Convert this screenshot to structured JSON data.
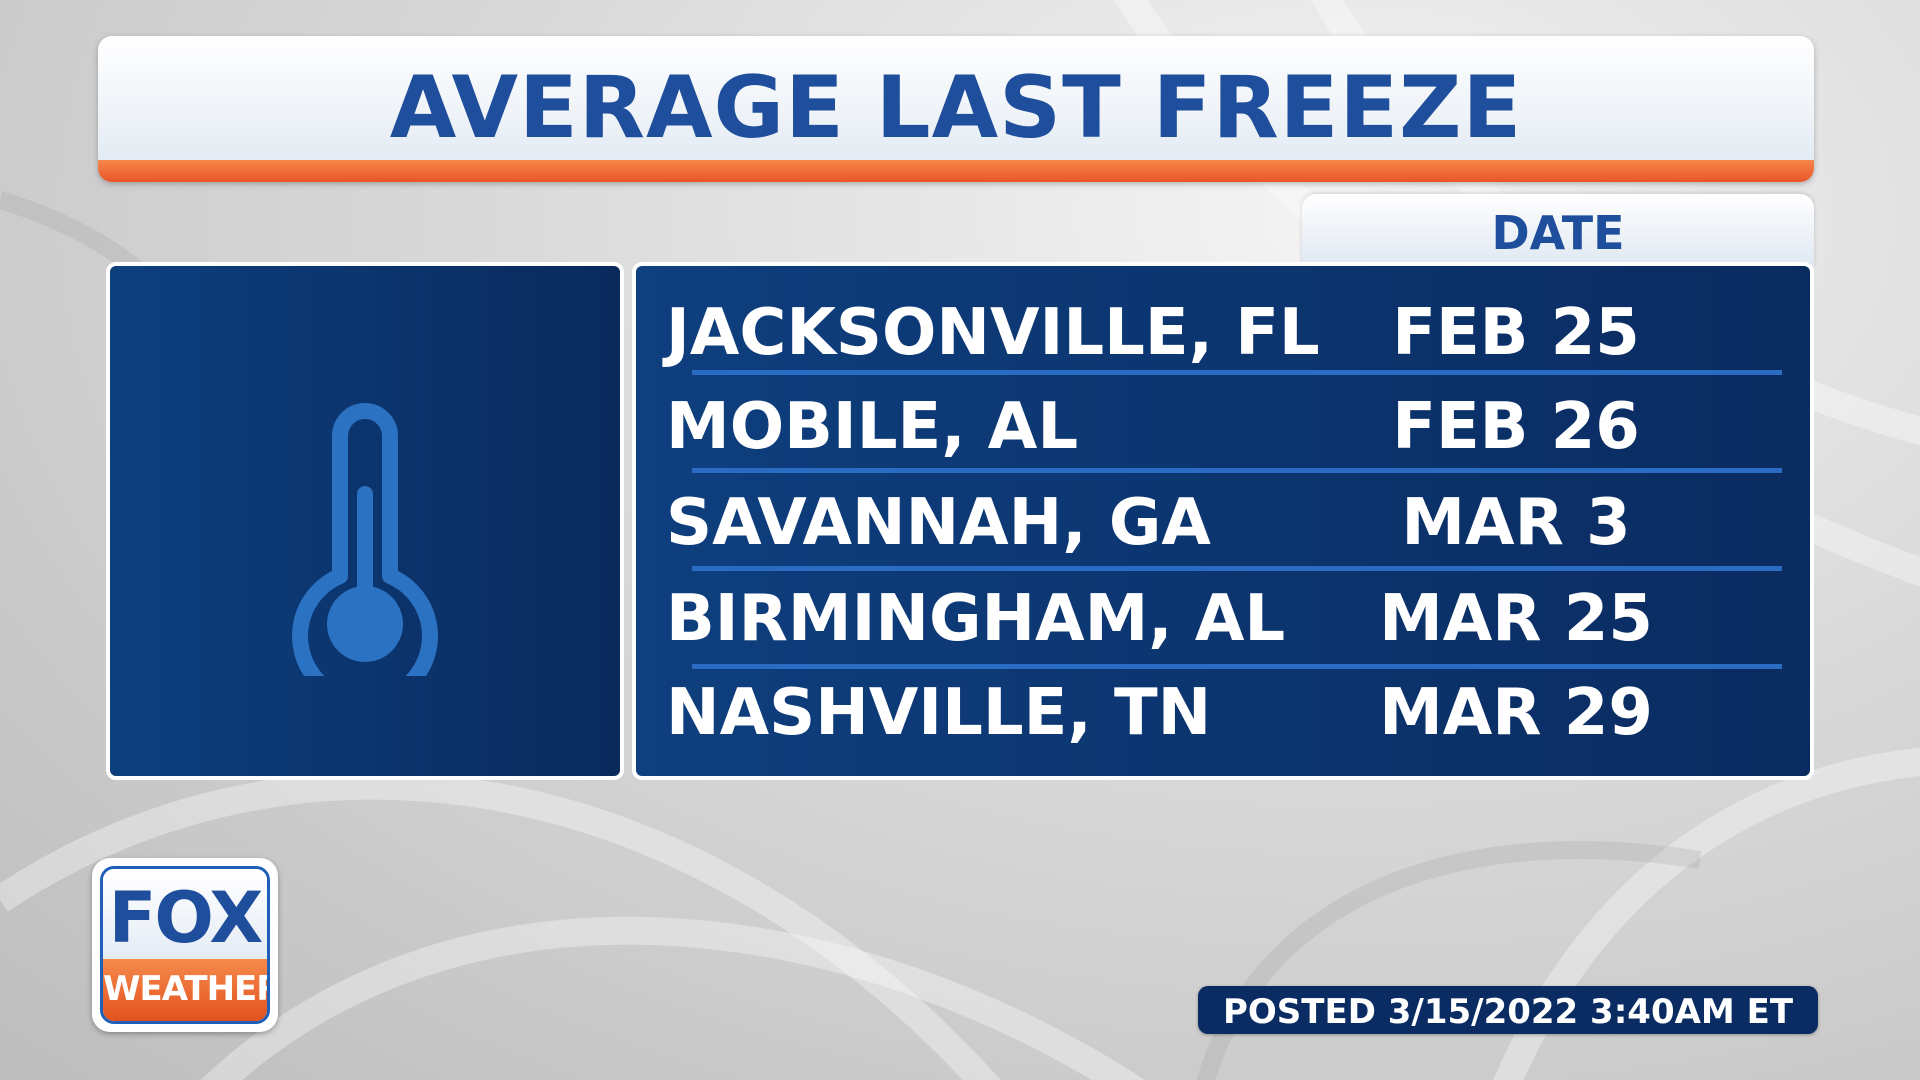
{
  "title": "AVERAGE LAST FREEZE",
  "column_header": "DATE",
  "rows": [
    {
      "city": "JACKSONVILLE, FL",
      "date": "FEB 25"
    },
    {
      "city": "MOBILE, AL",
      "date": "FEB 26"
    },
    {
      "city": "SAVANNAH, GA",
      "date": "MAR 3"
    },
    {
      "city": "BIRMINGHAM, AL",
      "date": "MAR 25"
    },
    {
      "city": "NASHVILLE, TN",
      "date": "MAR 29"
    }
  ],
  "logo": {
    "line1": "FOX",
    "line2": "WEATHER"
  },
  "posted": "POSTED 3/15/2022 3:40AM ET",
  "icon": "thermometer-icon",
  "colors": {
    "navy": "#0b2c63",
    "blue_text": "#1f4e9c",
    "orange": "#e8552a",
    "divider": "#2a6cc4"
  }
}
